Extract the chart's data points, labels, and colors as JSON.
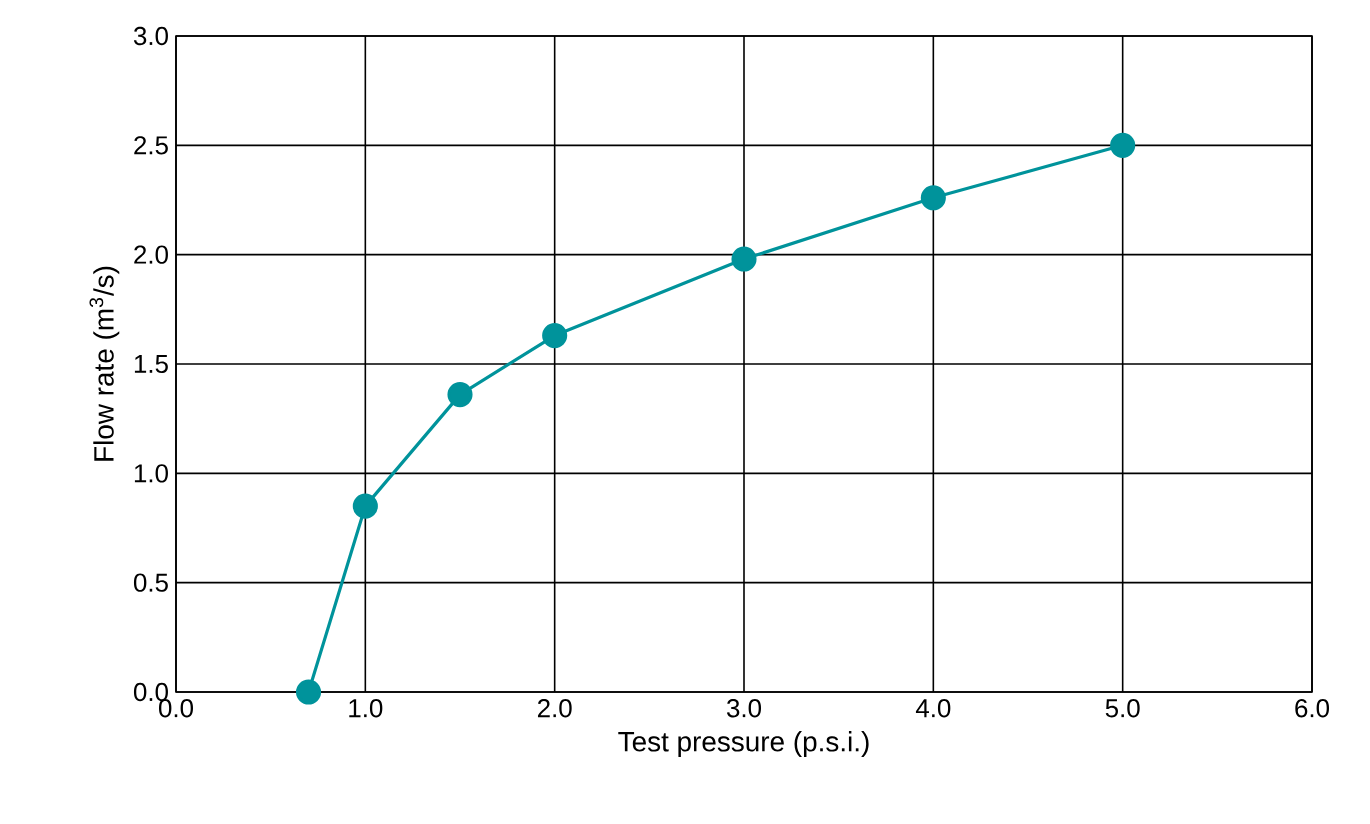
{
  "chart_data": {
    "type": "line",
    "xlabel": "Test pressure (p.s.i.)",
    "ylabel": "Flow rate (m$^{3}$/s)",
    "x": [
      0.7,
      1.0,
      1.5,
      2.0,
      3.0,
      4.0,
      5.0
    ],
    "series": [
      {
        "color": "#00939b",
        "values": [
          0.0,
          0.85,
          1.36,
          1.63,
          1.98,
          2.26,
          2.5
        ]
      }
    ],
    "xlim": [
      0,
      6
    ],
    "ylim": [
      0,
      3
    ],
    "xticks": [
      {
        "value": 0,
        "label": "0.0"
      },
      {
        "value": 1,
        "label": "1.0"
      },
      {
        "value": 2,
        "label": "2.0"
      },
      {
        "value": 3,
        "label": "3.0"
      },
      {
        "value": 4,
        "label": "4.0"
      },
      {
        "value": 5,
        "label": "5.0"
      },
      {
        "value": 6,
        "label": "6.0"
      }
    ],
    "yticks": [
      {
        "value": 0,
        "label": "0.0"
      },
      {
        "value": 0.5,
        "label": "0.5"
      },
      {
        "value": 1,
        "label": "1.0"
      },
      {
        "value": 1.5,
        "label": "1.5"
      },
      {
        "value": 2,
        "label": "2.0"
      },
      {
        "value": 2.5,
        "label": "2.5"
      },
      {
        "value": 3,
        "label": "3.0"
      }
    ],
    "grid": true,
    "marker": "circle",
    "line_style": "solid"
  }
}
